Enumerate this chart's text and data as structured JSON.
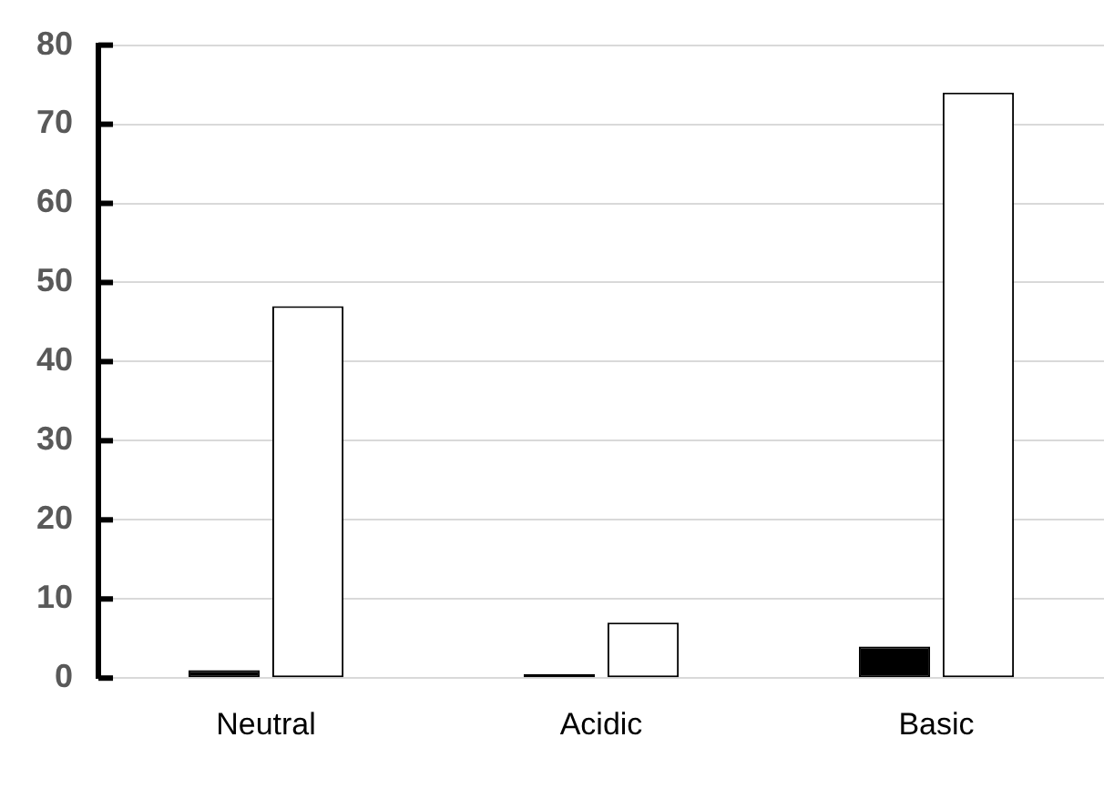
{
  "chart_data": {
    "type": "bar",
    "categories": [
      "Neutral",
      "Acidic",
      "Basic"
    ],
    "series": [
      {
        "color": "#000000",
        "values": [
          1,
          0.5,
          4
        ]
      },
      {
        "color": "#ffffff",
        "values": [
          47,
          7,
          74
        ]
      }
    ],
    "ylim": [
      0,
      80
    ],
    "yticks": [
      0,
      10,
      20,
      30,
      40,
      50,
      60,
      70,
      80
    ],
    "grid": "y",
    "legend": false
  }
}
